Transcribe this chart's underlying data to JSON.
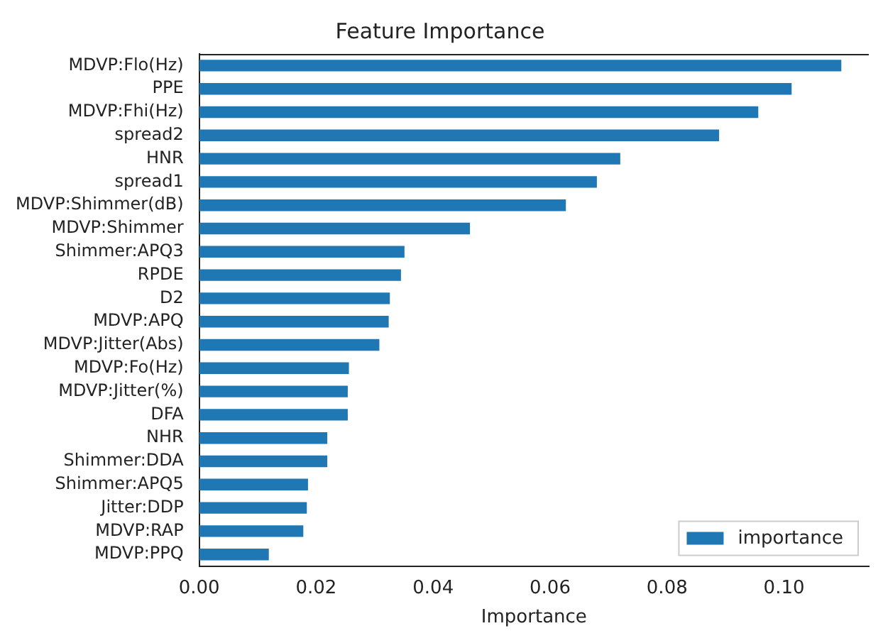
{
  "chart_data": {
    "type": "bar",
    "orientation": "horizontal",
    "title": "Feature Importance",
    "xlabel": "Importance",
    "categories": [
      "MDVP:Flo(Hz)",
      "PPE",
      "MDVP:Fhi(Hz)",
      "spread2",
      "HNR",
      "spread1",
      "MDVP:Shimmer(dB)",
      "MDVP:Shimmer",
      "Shimmer:APQ3",
      "RPDE",
      "D2",
      "MDVP:APQ",
      "MDVP:Jitter(Abs)",
      "MDVP:Fo(Hz)",
      "MDVP:Jitter(%)",
      "DFA",
      "NHR",
      "Shimmer:DDA",
      "Shimmer:APQ5",
      "Jitter:DDP",
      "MDVP:RAP",
      "MDVP:PPQ"
    ],
    "series": [
      {
        "name": "importance",
        "color": "#1f77b4",
        "values": [
          0.1098,
          0.1013,
          0.0956,
          0.0889,
          0.072,
          0.068,
          0.0627,
          0.0463,
          0.0351,
          0.0345,
          0.0326,
          0.0324,
          0.0308,
          0.0256,
          0.0254,
          0.0254,
          0.0219,
          0.0219,
          0.0186,
          0.0184,
          0.0178,
          0.0119
        ]
      }
    ],
    "xlim": [
      0,
      0.1145
    ],
    "xticks": [
      {
        "value": 0,
        "label": "0.00"
      },
      {
        "value": 0.02,
        "label": "0.02"
      },
      {
        "value": 0.04,
        "label": "0.04"
      },
      {
        "value": 0.06,
        "label": "0.06"
      },
      {
        "value": 0.08,
        "label": "0.08"
      },
      {
        "value": 0.1,
        "label": "0.10"
      }
    ],
    "grid": false,
    "legend": "bottom right"
  }
}
